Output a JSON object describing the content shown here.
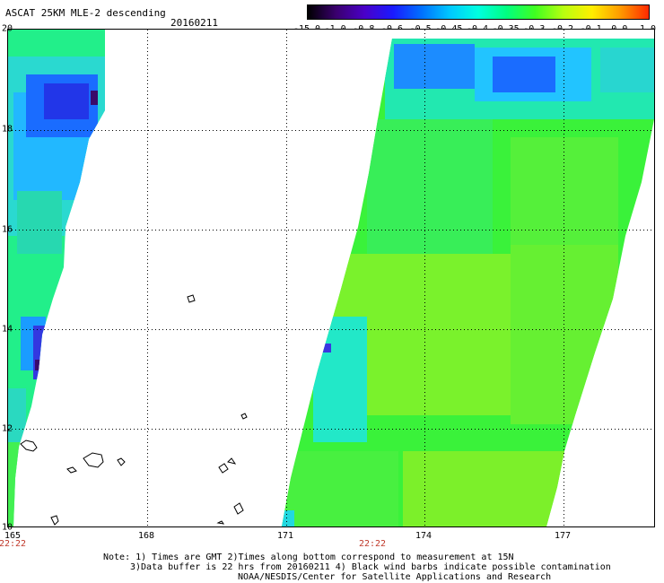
{
  "title": "ASCAT 25KM MLE-2 descending",
  "date": "20160211",
  "colorbar": {
    "labels": [
      "-15.0",
      "-1.0",
      "-0.8",
      "-0.6",
      "-0.5",
      "-0.45",
      "-0.4",
      "-0.35",
      "-0.3",
      "-0.2",
      "-0.1",
      "0.0",
      "1.0"
    ],
    "colors": [
      "#000000",
      "#3a006e",
      "#4a00c8",
      "#1a1aff",
      "#0070ff",
      "#00c8ff",
      "#00ffe0",
      "#00ff80",
      "#40ff20",
      "#b8ff10",
      "#ffee00",
      "#ff9a00",
      "#ff2a00"
    ]
  },
  "axes": {
    "lat_labels": [
      "20",
      "18",
      "16",
      "14",
      "12",
      "10"
    ],
    "lon_labels": [
      "165",
      "168",
      "171",
      "174",
      "177"
    ],
    "time_labels": [
      "22:22",
      "22:22"
    ]
  },
  "notes": [
    "Note: 1) Times are GMT 2)Times along bottom correspond to measurement at 15N",
    "3)Data buffer is 22 hrs from 20160211 4) Black wind barbs indicate possible contamination",
    "NOAA/NESDIS/Center for Satellite Applications and Research"
  ]
}
